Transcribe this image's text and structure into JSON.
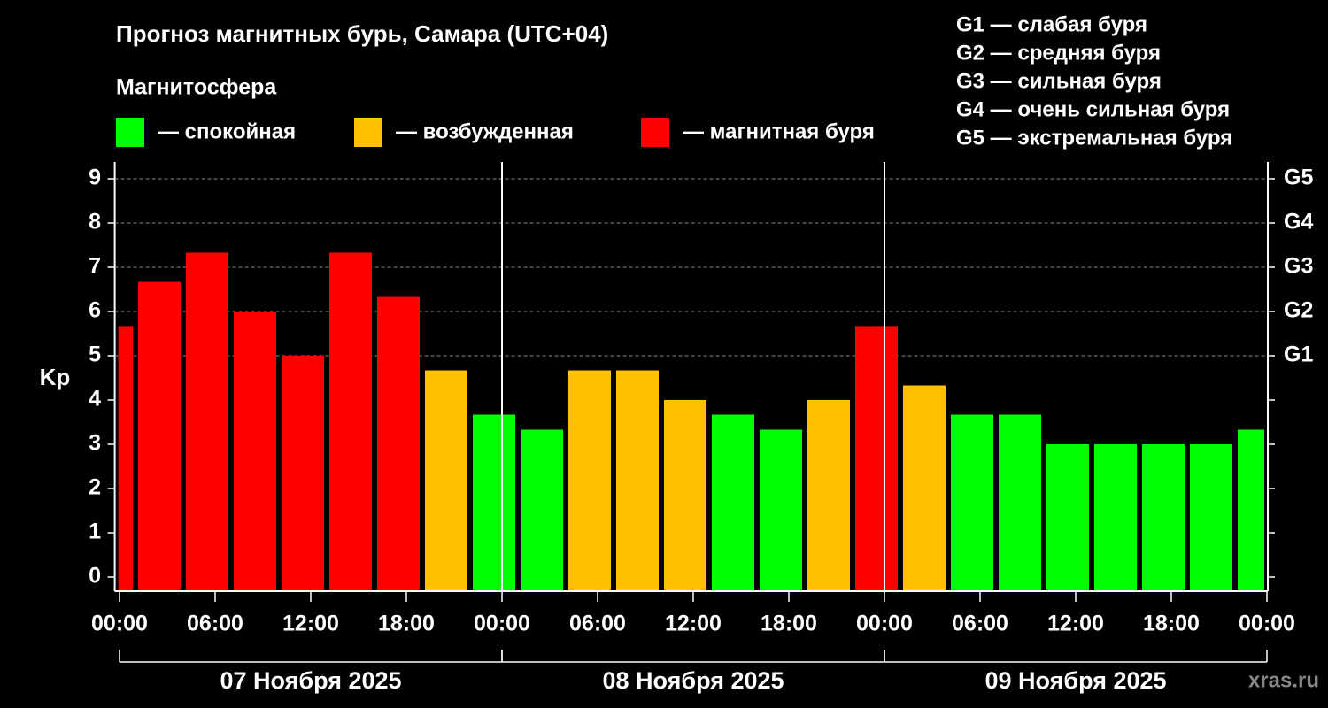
{
  "chart_data": {
    "type": "bar",
    "title": "Прогноз магнитных бурь, Самара (UTC+04)",
    "subtitle": "Магнитосфера",
    "legend": [
      {
        "color": "#00ff00",
        "label": "— спокойная"
      },
      {
        "color": "#ffc000",
        "label": "— возбужденная"
      },
      {
        "color": "#ff0000",
        "label": "— магнитная буря"
      }
    ],
    "g_scale": [
      "G1 — слабая буря",
      "G2 — средняя буря",
      "G3 — сильная буря",
      "G4 — очень сильная буря",
      "G5 — экстремальная буря"
    ],
    "ylabel": "Kp",
    "bar_width": 2.67,
    "x": [
      -0.5,
      2.5,
      5.5,
      8.5,
      11.5,
      14.5,
      17.5,
      20.5,
      23.5,
      26.5,
      29.5,
      32.5,
      35.5,
      38.5,
      41.5,
      44.5,
      47.5,
      50.5,
      53.5,
      56.5,
      59.5,
      62.5,
      65.5,
      68.5,
      71.5
    ],
    "values": [
      5.67,
      6.67,
      7.33,
      6.0,
      5.0,
      7.33,
      6.33,
      4.67,
      3.67,
      3.33,
      4.67,
      4.67,
      4.0,
      3.67,
      3.33,
      4.0,
      5.67,
      4.33,
      3.67,
      3.67,
      3.0,
      3.0,
      3.0,
      3.0,
      3.33
    ],
    "colors": [
      "#ff0000",
      "#ff0000",
      "#ff0000",
      "#ff0000",
      "#ff0000",
      "#ff0000",
      "#ff0000",
      "#ffc000",
      "#00ff00",
      "#00ff00",
      "#ffc000",
      "#ffc000",
      "#ffc000",
      "#00ff00",
      "#00ff00",
      "#ffc000",
      "#ff0000",
      "#ffc000",
      "#00ff00",
      "#00ff00",
      "#00ff00",
      "#00ff00",
      "#00ff00",
      "#00ff00",
      "#00ff00"
    ],
    "xlim": [
      -0.3,
      72
    ],
    "xticks": [
      {
        "value": 0,
        "label": "00:00"
      },
      {
        "value": 6,
        "label": "06:00"
      },
      {
        "value": 12,
        "label": "12:00"
      },
      {
        "value": 18,
        "label": "18:00"
      },
      {
        "value": 24,
        "label": "00:00"
      },
      {
        "value": 30,
        "label": "06:00"
      },
      {
        "value": 36,
        "label": "12:00"
      },
      {
        "value": 42,
        "label": "18:00"
      },
      {
        "value": 48,
        "label": "00:00"
      },
      {
        "value": 54,
        "label": "06:00"
      },
      {
        "value": 60,
        "label": "12:00"
      },
      {
        "value": 66,
        "label": "18:00"
      },
      {
        "value": 72,
        "label": "00:00"
      }
    ],
    "ylim": [
      -0.32,
      9.38
    ],
    "yticks": [
      0,
      1,
      2,
      3,
      4,
      5,
      6,
      7,
      8,
      9
    ],
    "y2lim": [
      -0.32,
      9.38
    ],
    "y2ticks": [
      {
        "value": 5,
        "label": "G1"
      },
      {
        "value": 6,
        "label": "G2"
      },
      {
        "value": 7,
        "label": "G3"
      },
      {
        "value": 8,
        "label": "G4"
      },
      {
        "value": 9,
        "label": "G5"
      }
    ],
    "days": [
      {
        "label": "07 Ноября 2025",
        "start": 0,
        "end": 24
      },
      {
        "label": "08 Ноября 2025",
        "start": 24,
        "end": 48
      },
      {
        "label": "09 Ноября 2025",
        "start": 48,
        "end": 72
      }
    ],
    "source": "xras.ru",
    "grid": true
  }
}
